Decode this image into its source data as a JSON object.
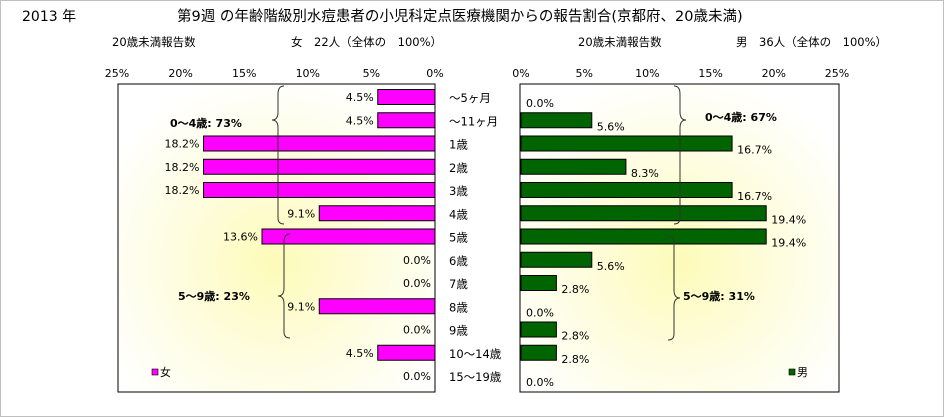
{
  "header": {
    "year": "2013 年",
    "title": "第9週 の年齢階級別水痘患者の小児科定点医療機関からの報告割合(京都府、20歳未満)"
  },
  "chart_data": [
    {
      "type": "bar",
      "orientation": "horizontal",
      "direction": "right-to-left",
      "subtitle_left": "20歳未満報告数",
      "subtitle_right": "女　22人（全体の　100%）",
      "series": [
        {
          "name": "女",
          "color": "#ff00ff",
          "values": [
            4.5,
            4.5,
            18.2,
            18.2,
            18.2,
            9.1,
            13.6,
            0.0,
            0.0,
            9.1,
            0.0,
            4.5,
            0.0
          ]
        }
      ],
      "value_labels": [
        "4.5%",
        "4.5%",
        "18.2%",
        "18.2%",
        "18.2%",
        "9.1%",
        "13.6%",
        "0.0%",
        "0.0%",
        "9.1%",
        "0.0%",
        "4.5%",
        "0.0%"
      ],
      "xlim": [
        0,
        25
      ],
      "tick_labels": [
        "25%",
        "20%",
        "15%",
        "10%",
        "5%",
        "0%"
      ],
      "legend": {
        "label": "女",
        "placement": "bottom-left"
      },
      "annotations": [
        "0～4歳: 73%",
        "5～9歳: 23%"
      ]
    },
    {
      "type": "bar",
      "orientation": "horizontal",
      "direction": "left-to-right",
      "subtitle_left": "20歳未満報告数",
      "subtitle_right": "男　36人（全体の　100%）",
      "series": [
        {
          "name": "男",
          "color": "#006400",
          "values": [
            0.0,
            5.6,
            16.7,
            8.3,
            16.7,
            19.4,
            19.4,
            5.6,
            2.8,
            0.0,
            2.8,
            2.8,
            0.0
          ]
        }
      ],
      "value_labels": [
        "0.0%",
        "5.6%",
        "16.7%",
        "8.3%",
        "16.7%",
        "19.4%",
        "19.4%",
        "5.6%",
        "2.8%",
        "0.0%",
        "2.8%",
        "2.8%",
        "0.0%"
      ],
      "xlim": [
        0,
        25
      ],
      "tick_labels": [
        "0%",
        "5%",
        "10%",
        "15%",
        "20%",
        "25%"
      ],
      "legend": {
        "label": "男",
        "placement": "bottom-right"
      },
      "annotations": [
        "0～4歳: 67%",
        "5～9歳: 31%"
      ]
    }
  ],
  "categories": [
    "～5ヶ月",
    "～11ヶ月",
    "1歳",
    "2歳",
    "3歳",
    "4歳",
    "5歳",
    "6歳",
    "7歳",
    "8歳",
    "9歳",
    "10～14歳",
    "15～19歳"
  ]
}
